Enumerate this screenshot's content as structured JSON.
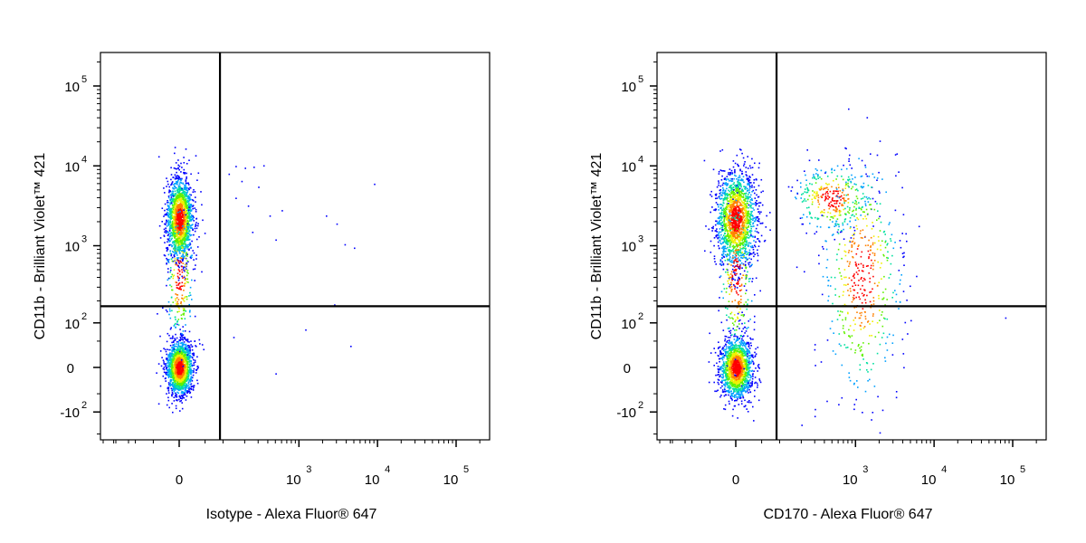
{
  "colors": {
    "density_scale": [
      "#0000ff",
      "#00a0ff",
      "#00e0a0",
      "#60f000",
      "#f0f000",
      "#ff8000",
      "#ff0000"
    ],
    "gate_lines": "#000000",
    "frame": "#000000"
  },
  "chart_data": [
    {
      "type": "scatter",
      "subtype": "flow-cytometry-density-dot-plot",
      "xlabel": "Isotype - Alexa Fluor® 647",
      "ylabel": "CD11b - Brilliant Violet™ 421",
      "x_scale": "biexponential",
      "y_scale": "biexponential",
      "x_ticks": [
        {
          "value": 0,
          "base": "0",
          "exp": ""
        },
        {
          "value": 1000,
          "base": "10",
          "exp": "3"
        },
        {
          "value": 10000,
          "base": "10",
          "exp": "4"
        },
        {
          "value": 100000,
          "base": "10",
          "exp": "5"
        }
      ],
      "y_ticks": [
        {
          "value": -100,
          "base": "-10",
          "exp": "2"
        },
        {
          "value": 0,
          "base": "0",
          "exp": ""
        },
        {
          "value": 100,
          "base": "10",
          "exp": "2"
        },
        {
          "value": 1000,
          "base": "10",
          "exp": "3"
        },
        {
          "value": 10000,
          "base": "10",
          "exp": "4"
        },
        {
          "value": 100000,
          "base": "10",
          "exp": "5"
        }
      ],
      "xlim": [
        -400,
        260000
      ],
      "ylim": [
        -300,
        260000
      ],
      "gate": {
        "x": 90,
        "y": 170
      },
      "populations": [
        {
          "name": "",
          "x_center": 0,
          "y_center": 0,
          "x_spread": 0.02,
          "y_spread": 0.04,
          "count": 1600
        },
        {
          "name": "",
          "x_center": 0,
          "y_center": 2200,
          "x_spread": 0.02,
          "y_spread": 0.06,
          "count": 1700
        },
        {
          "name": "",
          "x_center": 0,
          "y_center": 400,
          "x_spread": 0.02,
          "y_spread": 0.1,
          "count": 250
        }
      ],
      "sparse_events": [
        [
          150,
          10000
        ],
        [
          200,
          9500
        ],
        [
          260,
          9800
        ],
        [
          350,
          10200
        ],
        [
          120,
          8000
        ],
        [
          180,
          6500
        ],
        [
          300,
          5500
        ],
        [
          150,
          4000
        ],
        [
          220,
          3200
        ],
        [
          420,
          2400
        ],
        [
          600,
          2800
        ],
        [
          250,
          1500
        ],
        [
          500,
          1200
        ],
        [
          2200,
          2400
        ],
        [
          3000,
          1900
        ],
        [
          3800,
          1050
        ],
        [
          5000,
          950
        ],
        [
          9000,
          6000
        ],
        [
          2800,
          180
        ],
        [
          1200,
          80
        ],
        [
          4500,
          40
        ],
        [
          500,
          -10
        ],
        [
          140,
          60
        ]
      ]
    },
    {
      "type": "scatter",
      "subtype": "flow-cytometry-density-dot-plot",
      "xlabel": "CD170 - Alexa Fluor® 647",
      "ylabel": "CD11b - Brilliant Violet™ 421",
      "x_scale": "biexponential",
      "y_scale": "biexponential",
      "x_ticks": [
        {
          "value": 0,
          "base": "0",
          "exp": ""
        },
        {
          "value": 1000,
          "base": "10",
          "exp": "3"
        },
        {
          "value": 10000,
          "base": "10",
          "exp": "4"
        },
        {
          "value": 100000,
          "base": "10",
          "exp": "5"
        }
      ],
      "y_ticks": [
        {
          "value": -100,
          "base": "-10",
          "exp": "2"
        },
        {
          "value": 0,
          "base": "0",
          "exp": ""
        },
        {
          "value": 100,
          "base": "10",
          "exp": "2"
        },
        {
          "value": 1000,
          "base": "10",
          "exp": "3"
        },
        {
          "value": 10000,
          "base": "10",
          "exp": "4"
        },
        {
          "value": 100000,
          "base": "10",
          "exp": "5"
        }
      ],
      "xlim": [
        -400,
        260000
      ],
      "ylim": [
        -300,
        260000
      ],
      "gate": {
        "x": 90,
        "y": 170
      },
      "populations": [
        {
          "name": "",
          "x_center": 0,
          "y_center": 0,
          "x_spread": 0.025,
          "y_spread": 0.045,
          "count": 1500
        },
        {
          "name": "",
          "x_center": 0,
          "y_center": 2200,
          "x_spread": 0.03,
          "y_spread": 0.07,
          "count": 1700
        },
        {
          "name": "",
          "x_center": 0,
          "y_center": 400,
          "x_spread": 0.025,
          "y_spread": 0.12,
          "count": 250
        },
        {
          "name": "",
          "x_center": 500,
          "y_center": 4000,
          "x_spread": 0.06,
          "y_spread": 0.05,
          "count": 350
        },
        {
          "name": "",
          "x_center": 1200,
          "y_center": 400,
          "x_spread": 0.06,
          "y_spread": 0.18,
          "count": 500
        }
      ],
      "sparse_events": [
        [
          80000,
          120
        ],
        [
          5000,
          110
        ],
        [
          4000,
          2500
        ],
        [
          3500,
          500
        ],
        [
          200,
          -150
        ],
        [
          300,
          -90
        ]
      ]
    }
  ]
}
